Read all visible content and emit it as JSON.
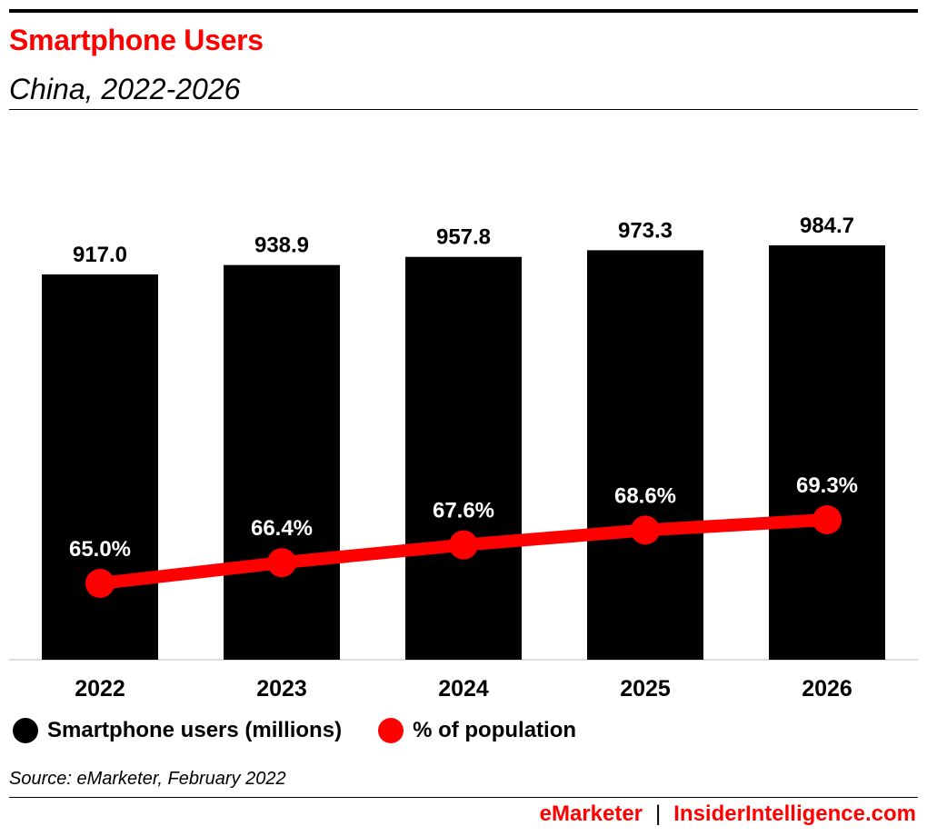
{
  "header": {
    "title": "Smartphone Users",
    "subtitle": "China, 2022-2026"
  },
  "colors": {
    "bar": "#000000",
    "line": "#ff0000",
    "title": "#ff0000",
    "bar_label": "#000000",
    "line_label": "#ffffff"
  },
  "chart_data": {
    "type": "bar",
    "categories": [
      "2022",
      "2023",
      "2024",
      "2025",
      "2026"
    ],
    "series": [
      {
        "name": "Smartphone users (millions)",
        "type": "bar",
        "values": [
          917.0,
          938.9,
          957.8,
          973.3,
          984.7
        ],
        "labels": [
          "917.0",
          "938.9",
          "957.8",
          "973.3",
          "984.7"
        ]
      },
      {
        "name": "% of population",
        "type": "line",
        "values": [
          65.0,
          66.4,
          67.6,
          68.6,
          69.3
        ],
        "labels": [
          "65.0%",
          "66.4%",
          "67.6%",
          "68.6%",
          "69.3%"
        ]
      }
    ],
    "legend": "bottom-left",
    "grid": false
  },
  "source": "Source: eMarketer, February 2022",
  "footer": {
    "brand_left": "eMarketer",
    "separator": "|",
    "brand_right": "InsiderIntelligence.com"
  }
}
